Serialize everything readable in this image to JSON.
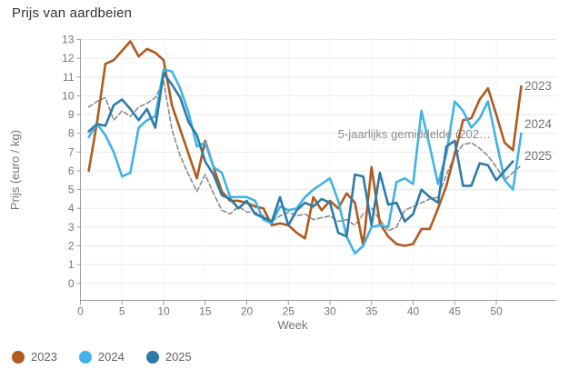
{
  "title": "Prijs van aardbeien",
  "chart_data": {
    "type": "line",
    "title": "Prijs van aardbeien",
    "xlabel": "Week",
    "ylabel": "Prijs (euro / kg)",
    "x_ticks": [
      0,
      5,
      10,
      15,
      20,
      25,
      30,
      35,
      40,
      45,
      50
    ],
    "y_ticks": [
      0,
      1,
      2,
      3,
      4,
      5,
      6,
      7,
      8,
      9,
      10,
      11,
      12,
      13
    ],
    "ylim": [
      0,
      13
    ],
    "grid": "horizontal",
    "legend_position": "bottom-left",
    "annotation": "5-jaarlijks gemiddelde (202…",
    "weeks_start": 1,
    "series": [
      {
        "name": "5-jaarlijks gemiddelde",
        "color": "#8a8a8a",
        "style": "dashed",
        "end_label": "",
        "values": [
          9.4,
          9.7,
          9.9,
          8.7,
          9.2,
          8.9,
          9.4,
          9.6,
          9.9,
          10.8,
          8.2,
          6.8,
          5.8,
          4.9,
          5.8,
          4.8,
          3.9,
          3.7,
          4.1,
          3.8,
          3.8,
          3.6,
          3.3,
          3.6,
          3.8,
          3.6,
          3.7,
          3.4,
          3.5,
          3.6,
          3.3,
          3.4,
          3.1,
          3.7,
          4.0,
          3.4,
          2.8,
          3.0,
          3.9,
          4.1,
          4.3,
          4.5,
          4.6,
          5.8,
          6.8,
          7.4,
          7.5,
          7.2,
          6.8,
          6.2,
          5.5,
          5.9,
          6.3
        ]
      },
      {
        "name": "2023",
        "color": "#b05a1e",
        "style": "solid",
        "end_label": "2023",
        "values": [
          6.0,
          8.6,
          11.7,
          11.9,
          12.4,
          12.9,
          12.1,
          12.5,
          12.3,
          11.9,
          9.5,
          8.2,
          6.9,
          5.6,
          7.6,
          6.2,
          4.9,
          4.4,
          4.4,
          4.3,
          4.1,
          4.0,
          3.1,
          3.2,
          3.1,
          2.7,
          2.4,
          4.6,
          3.9,
          4.4,
          4.0,
          4.8,
          4.3,
          2.0,
          6.2,
          3.2,
          2.5,
          2.1,
          2.0,
          2.1,
          2.9,
          2.9,
          4.0,
          5.2,
          6.9,
          8.7,
          8.8,
          9.8,
          10.4,
          9.0,
          7.5,
          7.1,
          10.5
        ]
      },
      {
        "name": "2024",
        "color": "#41b3e6",
        "style": "solid",
        "end_label": "2024",
        "values": [
          7.8,
          8.5,
          7.9,
          7.0,
          5.7,
          5.9,
          8.3,
          8.7,
          8.9,
          11.4,
          11.3,
          10.4,
          9.1,
          7.3,
          7.5,
          6.2,
          5.9,
          4.6,
          4.6,
          4.6,
          4.4,
          3.4,
          3.2,
          4.1,
          3.9,
          4.0,
          4.6,
          5.0,
          5.3,
          5.6,
          4.4,
          2.5,
          1.6,
          2.0,
          3.0,
          3.1,
          3.0,
          5.4,
          5.6,
          5.3,
          9.2,
          7.3,
          5.3,
          6.9,
          9.7,
          9.2,
          8.3,
          8.8,
          9.7,
          7.6,
          5.5,
          5.0,
          8.0
        ]
      },
      {
        "name": "2025",
        "color": "#2d7ca8",
        "style": "solid",
        "end_label": "2025",
        "values": [
          8.1,
          8.5,
          8.4,
          9.5,
          9.8,
          9.3,
          8.7,
          9.3,
          8.3,
          11.2,
          10.6,
          9.9,
          8.6,
          7.9,
          6.5,
          5.8,
          4.7,
          4.5,
          4.0,
          4.4,
          3.7,
          3.5,
          3.3,
          4.6,
          3.1,
          3.9,
          4.3,
          4.1,
          4.5,
          4.3,
          2.7,
          2.5,
          5.8,
          5.7,
          3.1,
          5.9,
          4.2,
          4.3,
          3.3,
          3.7,
          5.0,
          4.6,
          4.3,
          7.3,
          7.6,
          5.2,
          5.2,
          6.4,
          6.3,
          5.5,
          6.0,
          6.5
        ]
      }
    ]
  },
  "legend": {
    "items": [
      {
        "label": "2023",
        "color": "#b05a1e"
      },
      {
        "label": "2024",
        "color": "#41b3e6"
      },
      {
        "label": "2025",
        "color": "#2d7ca8"
      }
    ]
  },
  "colors": {
    "grid": "#e8e8e8",
    "grid_vertical": "#f4f4f4",
    "axis": "#9e9e9e",
    "tick_label": "#757575",
    "title": "#333333"
  }
}
